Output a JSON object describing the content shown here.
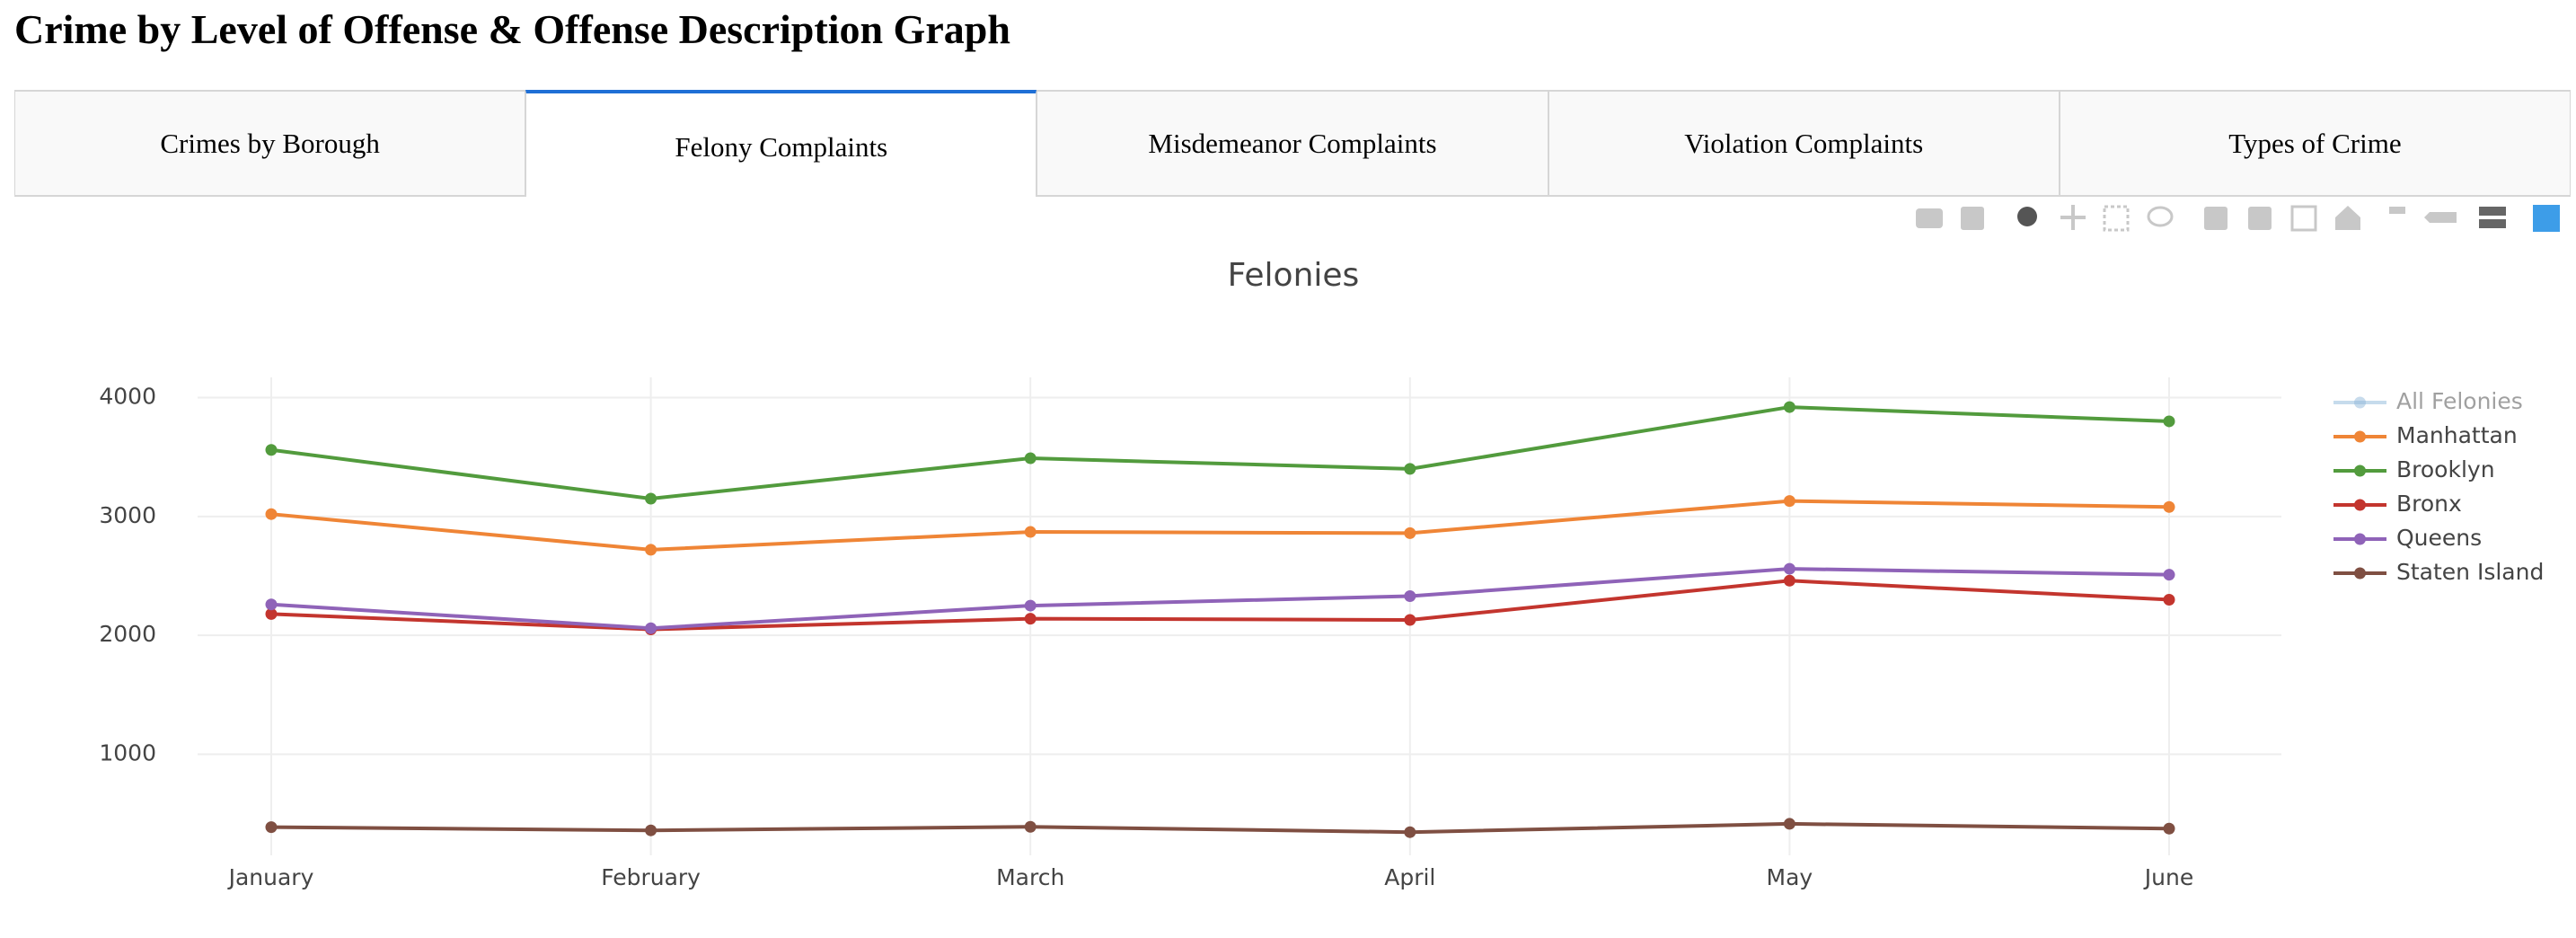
{
  "header": {
    "title": "Crime by Level of Offense & Offense Description Graph"
  },
  "tabs": {
    "items": [
      "Crimes by Borough",
      "Felony Complaints",
      "Misdemeanor Complaints",
      "Violation Complaints",
      "Types of Crime"
    ],
    "selected": 1
  },
  "chart_data": {
    "type": "line",
    "title": "Felonies",
    "categories": [
      "January",
      "February",
      "March",
      "April",
      "May",
      "June"
    ],
    "series": [
      {
        "name": "All Felonies",
        "color": "#8fb8da",
        "visible": false,
        "values": [
          null,
          null,
          null,
          null,
          null,
          null
        ]
      },
      {
        "name": "Manhattan",
        "color": "#ef8536",
        "values": [
          3020,
          2720,
          2870,
          2860,
          3130,
          3080
        ]
      },
      {
        "name": "Brooklyn",
        "color": "#529b3d",
        "values": [
          3560,
          3150,
          3490,
          3400,
          3920,
          3800
        ]
      },
      {
        "name": "Bronx",
        "color": "#c3352e",
        "values": [
          2180,
          2050,
          2140,
          2130,
          2460,
          2300
        ]
      },
      {
        "name": "Queens",
        "color": "#8f63b8",
        "values": [
          2260,
          2060,
          2250,
          2330,
          2560,
          2510
        ]
      },
      {
        "name": "Staten Island",
        "color": "#7f4f42",
        "values": [
          387,
          360,
          390,
          345,
          415,
          375
        ]
      }
    ],
    "ylim": [
      150,
      4170
    ],
    "yticks": [
      1000,
      2000,
      3000,
      4000
    ],
    "grid": true,
    "legend": "right"
  }
}
